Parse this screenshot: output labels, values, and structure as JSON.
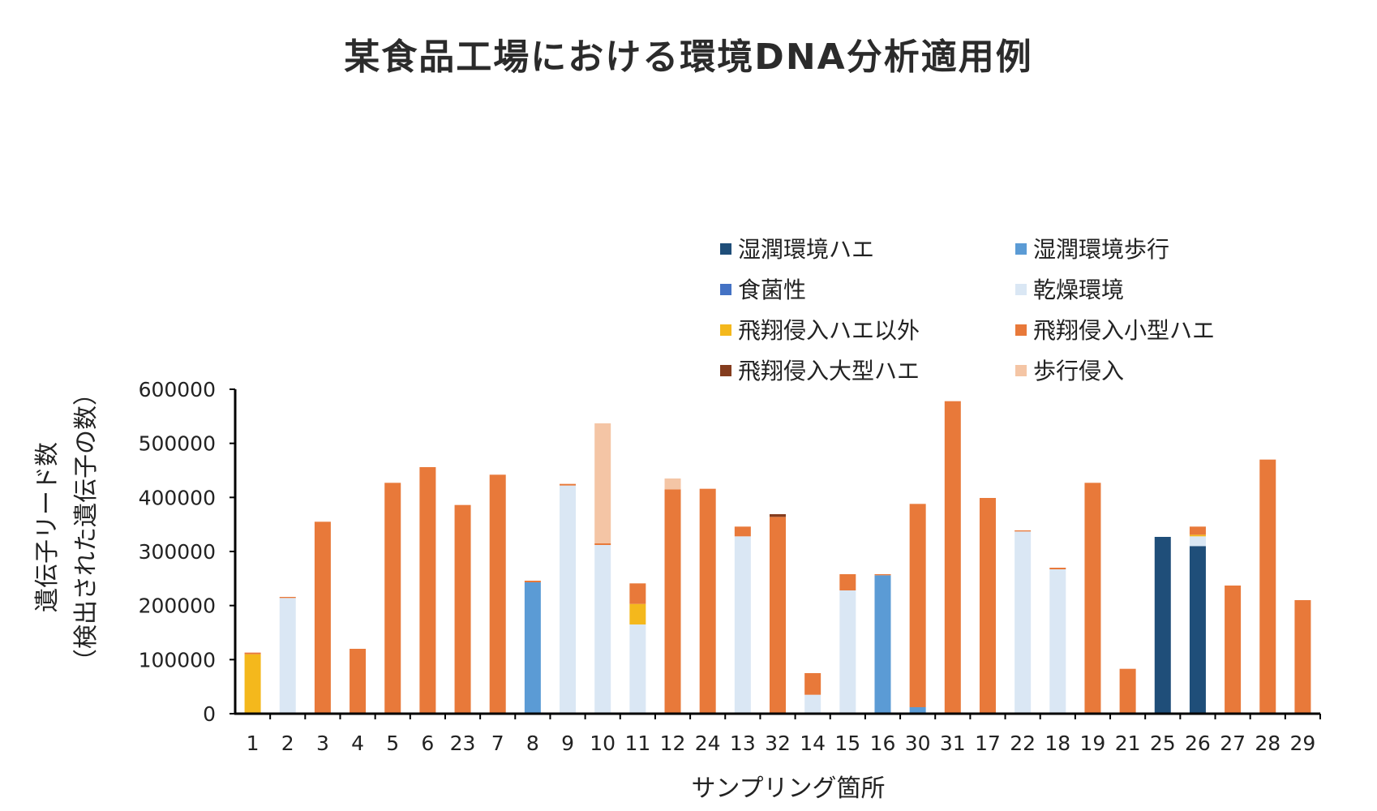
{
  "chart_data": {
    "type": "bar",
    "stacked": true,
    "title": "某食品工場における環境DNA分析適用例",
    "xlabel": "サンプリング箇所",
    "ylabel": "遺伝子リード数",
    "ylabel_sub": "（検出された遺伝子の数）",
    "ylim": [
      0,
      600000
    ],
    "yticks": [
      0,
      100000,
      200000,
      300000,
      400000,
      500000,
      600000
    ],
    "ytick_labels": [
      "0",
      "100000",
      "200000",
      "300000",
      "400000",
      "500000",
      "600000"
    ],
    "grid": false,
    "legend_position": "top-right",
    "categories": [
      "1",
      "2",
      "3",
      "4",
      "5",
      "6",
      "23",
      "7",
      "8",
      "9",
      "10",
      "11",
      "12",
      "24",
      "13",
      "32",
      "14",
      "15",
      "16",
      "30",
      "31",
      "17",
      "22",
      "18",
      "19",
      "21",
      "25",
      "26",
      "27",
      "28",
      "29"
    ],
    "series": [
      {
        "name": "湿潤環境ハエ",
        "color": "#1f4e79",
        "values": [
          0,
          0,
          0,
          0,
          0,
          0,
          0,
          0,
          0,
          0,
          0,
          0,
          0,
          0,
          0,
          0,
          0,
          0,
          0,
          0,
          0,
          0,
          0,
          0,
          0,
          0,
          327000,
          310000,
          0,
          0,
          0
        ]
      },
      {
        "name": "湿潤環境歩行",
        "color": "#5b9bd5",
        "values": [
          0,
          0,
          0,
          0,
          0,
          0,
          0,
          0,
          243000,
          0,
          0,
          0,
          0,
          0,
          0,
          0,
          0,
          0,
          256000,
          12000,
          0,
          0,
          0,
          0,
          0,
          0,
          0,
          0,
          0,
          0,
          0
        ]
      },
      {
        "name": "食菌性",
        "color": "#4472c4",
        "values": [
          0,
          0,
          0,
          0,
          0,
          0,
          0,
          0,
          0,
          0,
          0,
          0,
          0,
          0,
          0,
          0,
          0,
          0,
          0,
          0,
          0,
          0,
          0,
          0,
          0,
          0,
          0,
          0,
          0,
          0,
          0
        ]
      },
      {
        "name": "乾燥環境",
        "color": "#dae7f4",
        "values": [
          0,
          214000,
          0,
          0,
          0,
          0,
          0,
          0,
          0,
          422000,
          312000,
          165000,
          0,
          0,
          328000,
          0,
          35000,
          228000,
          0,
          0,
          0,
          0,
          337000,
          267000,
          0,
          0,
          0,
          18000,
          0,
          0,
          0
        ]
      },
      {
        "name": "飛翔侵入ハエ以外",
        "color": "#f4b81c",
        "values": [
          110000,
          0,
          0,
          0,
          0,
          0,
          0,
          0,
          0,
          0,
          0,
          38000,
          0,
          0,
          0,
          0,
          0,
          0,
          0,
          0,
          0,
          0,
          0,
          0,
          0,
          0,
          0,
          3000,
          0,
          0,
          0
        ]
      },
      {
        "name": "飛翔侵入小型ハエ",
        "color": "#e8793a",
        "values": [
          3000,
          2000,
          355000,
          120000,
          427000,
          456000,
          386000,
          442000,
          3000,
          3000,
          3000,
          38000,
          415000,
          416000,
          18000,
          364000,
          40000,
          30000,
          2000,
          376000,
          578000,
          399000,
          2000,
          3000,
          427000,
          83000,
          0,
          15000,
          237000,
          470000,
          210000
        ]
      },
      {
        "name": "飛翔侵入大型ハエ",
        "color": "#843c1e",
        "values": [
          0,
          0,
          0,
          0,
          0,
          0,
          0,
          0,
          0,
          0,
          0,
          0,
          0,
          0,
          0,
          5000,
          0,
          0,
          0,
          0,
          0,
          0,
          0,
          0,
          0,
          0,
          0,
          0,
          0,
          0,
          0
        ]
      },
      {
        "name": "歩行侵入",
        "color": "#f4c5a5",
        "values": [
          0,
          0,
          0,
          0,
          0,
          0,
          0,
          0,
          0,
          0,
          222000,
          0,
          20000,
          0,
          0,
          0,
          0,
          0,
          0,
          0,
          0,
          0,
          0,
          0,
          0,
          0,
          0,
          0,
          0,
          0,
          0
        ]
      }
    ]
  }
}
